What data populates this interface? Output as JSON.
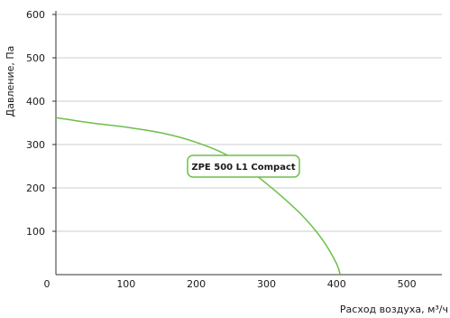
{
  "chart_data": {
    "type": "line",
    "xlabel": "Расход воздуха, м³/ч",
    "ylabel": "Давление, Па",
    "xlim": [
      0,
      550
    ],
    "ylim": [
      0,
      600
    ],
    "x_ticks": [
      0,
      100,
      200,
      300,
      400,
      500
    ],
    "x_tick_labels": [
      "0",
      "100",
      "200",
      "300",
      "400",
      "500"
    ],
    "y_ticks": [
      100,
      200,
      300,
      400,
      500,
      600
    ],
    "y_tick_labels": [
      "100",
      "200",
      "300",
      "400",
      "500",
      "600"
    ],
    "grid": "horizontal",
    "colors": {
      "curve": "#6cbf4a",
      "grid": "#cccccc",
      "axis": "#333333"
    },
    "series": [
      {
        "name": "ZPE 500 L1 Compact",
        "x": [
          0,
          50,
          100,
          150,
          200,
          250,
          300,
          350,
          380,
          400,
          405
        ],
        "y": [
          362,
          350,
          340,
          327,
          305,
          270,
          210,
          138,
          80,
          25,
          0
        ]
      }
    ]
  }
}
